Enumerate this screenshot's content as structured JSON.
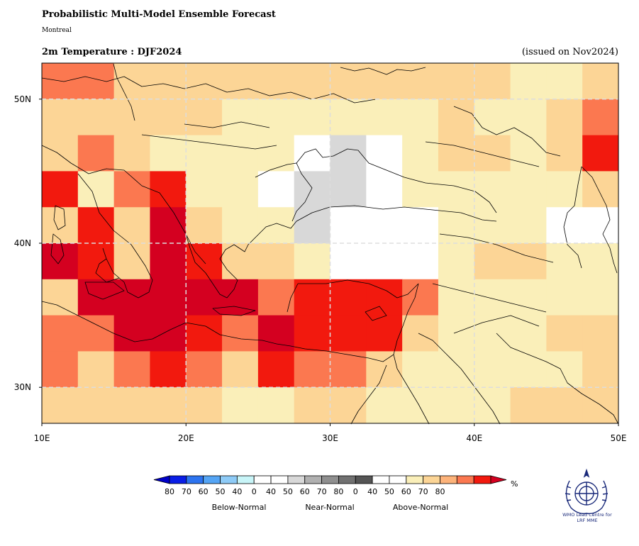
{
  "header": {
    "title": "Probabilistic Multi-Model Ensemble Forecast",
    "subtitle": "Montreal",
    "variable": "2m Temperature : DJF2024",
    "issued": "(issued on Nov2024)"
  },
  "map": {
    "lon_range": [
      10,
      50
    ],
    "lat_range": [
      27.5,
      52.5
    ],
    "cell_size_deg": 2.5,
    "x_ticks": [
      "10E",
      "20E",
      "30E",
      "40E",
      "50E"
    ],
    "y_ticks": [
      "30N",
      "40N",
      "50N"
    ],
    "grid_columns_lon": [
      10,
      12.5,
      15,
      17.5,
      20,
      22.5,
      25,
      27.5,
      30,
      32.5,
      35,
      37.5,
      40,
      42.5,
      45,
      47.5
    ],
    "grid_rows_lat_top": [
      52.5,
      50,
      47.5,
      45,
      42.5,
      40,
      37.5,
      35,
      32.5,
      30
    ],
    "category_codes": "A = Above-Normal, N = Near-Normal, W = white (0-40)",
    "cells": [
      [
        "A70",
        "A70",
        "A50",
        "A50",
        "A50",
        "A50",
        "A50",
        "A50",
        "A50",
        "A50",
        "A50",
        "A50",
        "A50",
        "A40",
        "A40",
        "A50"
      ],
      [
        "A50",
        "A50",
        "A50",
        "A50",
        "A50",
        "A40",
        "A40",
        "A40",
        "A40",
        "A40",
        "A40",
        "A50",
        "A40",
        "A40",
        "A50",
        "A70"
      ],
      [
        "A50",
        "A70",
        "A50",
        "A40",
        "A40",
        "A40",
        "A40",
        "W",
        "N40",
        "W",
        "A40",
        "A50",
        "A50",
        "A40",
        "A50",
        "A80"
      ],
      [
        "A80",
        "A40",
        "A70",
        "A80",
        "A40",
        "A40",
        "W",
        "N40",
        "N40",
        "W",
        "A40",
        "A40",
        "A40",
        "A40",
        "A40",
        "A50"
      ],
      [
        "A50",
        "A80",
        "A50",
        "A90",
        "A50",
        "A40",
        "A40",
        "N40",
        "W",
        "W",
        "W",
        "A40",
        "A40",
        "A40",
        "W",
        "W"
      ],
      [
        "A90",
        "A80",
        "A50",
        "A90",
        "A80",
        "A50",
        "A50",
        "A40",
        "W",
        "W",
        "W",
        "A40",
        "A50",
        "A50",
        "A40",
        "A40"
      ],
      [
        "A50",
        "A90",
        "A90",
        "A90",
        "A90",
        "A90",
        "A70",
        "A80",
        "A80",
        "A80",
        "A70",
        "A40",
        "A40",
        "A40",
        "A40",
        "A40"
      ],
      [
        "A70",
        "A70",
        "A90",
        "A90",
        "A80",
        "A70",
        "A90",
        "A80",
        "A80",
        "A80",
        "A50",
        "A40",
        "A40",
        "A40",
        "A50",
        "A50"
      ],
      [
        "A70",
        "A50",
        "A70",
        "A80",
        "A70",
        "A50",
        "A80",
        "A70",
        "A70",
        "A50",
        "A40",
        "A40",
        "A40",
        "A40",
        "A40",
        "A50"
      ],
      [
        "A50",
        "A50",
        "A50",
        "A50",
        "A50",
        "A40",
        "A40",
        "A50",
        "A50",
        "A40",
        "A40",
        "A40",
        "A40",
        "A50",
        "A50",
        "A50"
      ]
    ]
  },
  "legend": {
    "groups": [
      "Below-Normal",
      "Near-Normal",
      "Above-Normal"
    ],
    "tick_labels": [
      "80",
      "70",
      "60",
      "50",
      "40",
      "0",
      "40",
      "50",
      "60",
      "70",
      "80",
      "0",
      "40",
      "50",
      "60",
      "70",
      "80"
    ],
    "unit": "%",
    "colors": {
      "below": [
        "#0a1ee6",
        "#2d74f0",
        "#55a5f5",
        "#8ecbf7",
        "#c8f5f8"
      ],
      "white": "#ffffff",
      "near": [
        "#d8d8d8",
        "#b0b0b0",
        "#8f8f8f",
        "#717171",
        "#555555"
      ],
      "above": [
        "#faefb9",
        "#fcd596",
        "#fdb37a",
        "#fb7850",
        "#f2190e"
      ],
      "above_extreme": "#d40020"
    }
  },
  "logo": {
    "line1": "WMO Lead Centre for",
    "line2": "LRF MME"
  }
}
